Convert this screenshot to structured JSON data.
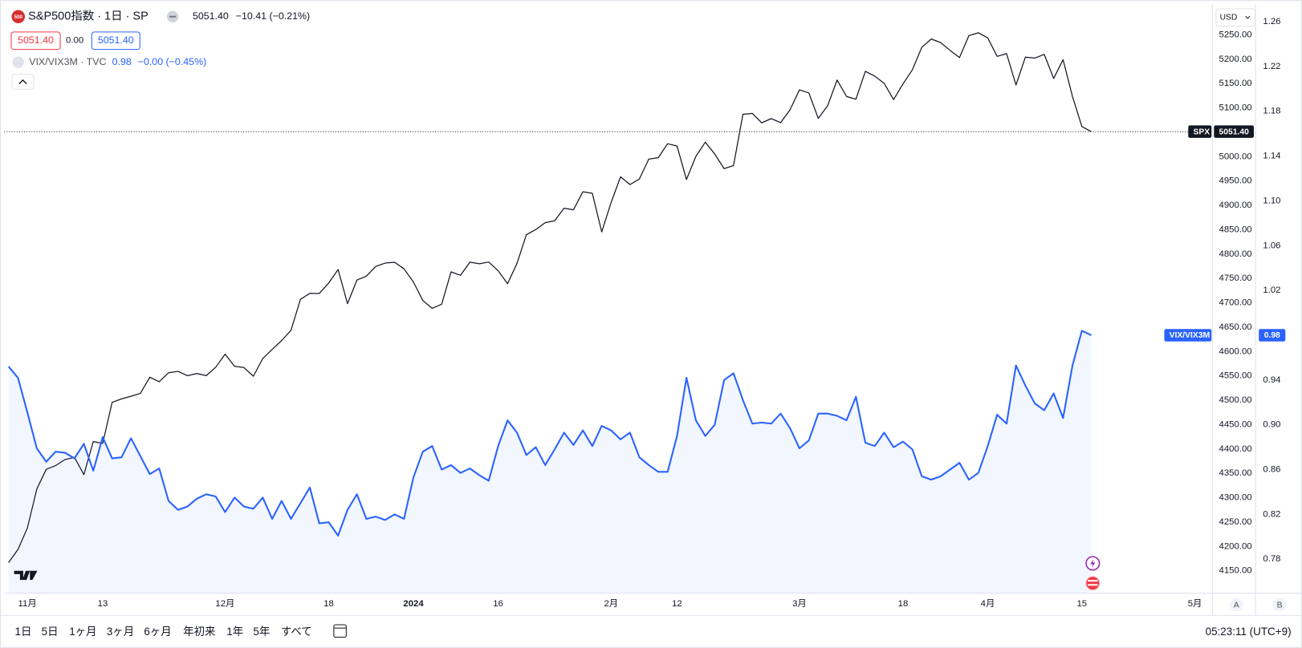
{
  "header": {
    "logo": "500",
    "symbol": "S&P500指数 · 1日 · SP",
    "quote": "5051.40",
    "change": "−10.41 (−0.21%)",
    "sell": "5051.40",
    "spread": "0.00",
    "buy": "5051.40",
    "compare": "VIX/VIX3M · TVC",
    "compare_quote": "0.98",
    "compare_change": "−0.00 (−0.45%)",
    "currency": "USD"
  },
  "chart_data": {
    "type": "line",
    "categories": [
      null,
      null,
      "11月",
      null,
      null,
      null,
      null,
      null,
      null,
      null,
      "13",
      null,
      null,
      null,
      null,
      null,
      null,
      null,
      null,
      null,
      null,
      null,
      null,
      "12月",
      null,
      null,
      null,
      null,
      null,
      null,
      null,
      null,
      null,
      null,
      "18",
      null,
      null,
      null,
      null,
      null,
      null,
      null,
      null,
      "2024",
      null,
      null,
      null,
      null,
      null,
      null,
      null,
      null,
      "16",
      null,
      null,
      null,
      null,
      null,
      null,
      null,
      null,
      null,
      null,
      null,
      "2月",
      null,
      null,
      null,
      null,
      null,
      null,
      "12",
      null,
      null,
      null,
      null,
      null,
      null,
      null,
      null,
      null,
      null,
      null,
      null,
      "3月",
      null,
      null,
      null,
      null,
      null,
      null,
      null,
      null,
      null,
      null,
      "18",
      null,
      null,
      null,
      null,
      null,
      null,
      null,
      null,
      "4月",
      null,
      null,
      null,
      null,
      null,
      null,
      null,
      null,
      null,
      "15",
      null,
      null,
      null,
      null,
      null,
      null,
      null,
      null,
      null,
      null,
      null,
      "5月"
    ],
    "series": [
      {
        "name": "SPX",
        "color": "#131722",
        "axis": "y",
        "values": [
          4166.82,
          4193.8,
          4237.86,
          4317.78,
          4358.34,
          4365.98,
          4378.38,
          4382.78,
          4347.35,
          4415.24,
          4411.55,
          4495.7,
          4502.88,
          4508.24,
          4514.02,
          4547.38,
          4538.19,
          4556.62,
          4559.34,
          4550.43,
          4554.89,
          4550.58,
          4567.8,
          4594.63,
          4569.78,
          4567.18,
          4549.34,
          4585.59,
          4604.37,
          4622.44,
          4643.7,
          4707.09,
          4719.55,
          4719.19,
          4740.56,
          4768.37,
          4698.35,
          4746.75,
          4754.63,
          4774.75,
          4781.58,
          4783.35,
          4769.83,
          4742.83,
          4704.81,
          4688.68,
          4697.24,
          4763.54,
          4756.5,
          4783.45,
          4780.24,
          4783.83,
          4765.98,
          4739.21,
          4780.94,
          4839.81,
          4850.43,
          4864.6,
          4868.55,
          4894.16,
          4890.97,
          4927.93,
          4924.97,
          4845.65,
          4906.19,
          4958.61,
          4942.81,
          4954.23,
          4995.06,
          4997.91,
          5026.61,
          5021.84,
          4953.17,
          5000.62,
          5029.73,
          5005.57,
          4975.51,
          4981.8,
          5087.03,
          5088.8,
          5069.53,
          5078.18,
          5069.76,
          5096.27,
          5137.08,
          5130.95,
          5078.65,
          5104.76,
          5157.36,
          5123.69,
          5117.94,
          5175.27,
          5165.31,
          5150.48,
          5117.09,
          5149.42,
          5178.51,
          5224.62,
          5241.53,
          5234.18,
          5218.19,
          5203.58,
          5248.49,
          5254.35,
          5243.77,
          5205.81,
          5211.49,
          5147.21,
          5204.34,
          5202.39,
          5209.91,
          5160.64,
          5199.06,
          5123.41,
          5061.82,
          5051.4,
          null,
          null,
          null,
          null,
          null,
          null,
          null,
          null,
          null,
          null,
          null
        ],
        "value_labels": [
          null,
          null,
          null,
          null,
          null,
          null,
          null,
          null,
          null,
          null,
          null,
          null,
          null,
          null,
          null,
          null,
          null,
          null,
          null,
          null,
          null,
          null,
          null,
          null,
          null,
          null,
          null,
          null,
          null,
          null,
          null,
          null,
          null,
          null,
          null,
          null,
          null,
          null,
          null,
          null,
          null,
          null,
          null,
          null,
          null,
          null,
          null,
          null,
          null,
          null,
          null,
          null,
          null,
          null,
          null,
          null,
          null,
          null,
          null,
          null,
          null,
          null,
          null,
          null,
          null,
          null,
          null,
          null,
          null,
          null,
          null,
          null,
          null,
          null,
          null,
          null,
          null,
          null,
          null,
          null,
          null,
          null,
          null,
          null,
          null,
          null,
          null,
          null,
          null,
          null,
          null,
          null,
          null,
          null,
          null,
          null,
          null,
          null,
          null,
          null,
          null,
          null,
          null,
          null,
          null,
          null,
          null,
          null,
          null,
          null,
          null,
          null,
          null,
          null,
          null,
          "5051.40",
          null,
          null,
          null,
          null,
          null,
          null,
          null,
          null,
          null,
          null,
          null
        ]
      },
      {
        "name": "VIX/VIX3M",
        "color": "#2962ff",
        "axis": "y2",
        "area": true,
        "values": [
          0.952,
          0.942,
          0.911,
          0.879,
          0.867,
          0.876,
          0.875,
          0.87,
          0.883,
          0.859,
          0.889,
          0.87,
          0.871,
          0.888,
          0.872,
          0.856,
          0.861,
          0.832,
          0.824,
          0.827,
          0.834,
          0.838,
          0.836,
          0.822,
          0.835,
          0.827,
          0.825,
          0.835,
          0.816,
          0.832,
          0.816,
          0.83,
          0.844,
          0.812,
          0.813,
          0.801,
          0.824,
          0.838,
          0.816,
          0.818,
          0.815,
          0.82,
          0.816,
          0.853,
          0.876,
          0.881,
          0.86,
          0.864,
          0.857,
          0.861,
          0.855,
          0.85,
          0.881,
          0.904,
          0.893,
          0.873,
          0.88,
          0.864,
          0.878,
          0.893,
          0.882,
          0.895,
          0.881,
          0.899,
          0.895,
          0.887,
          0.893,
          0.871,
          0.864,
          0.858,
          0.858,
          0.89,
          0.942,
          0.904,
          0.89,
          0.9,
          0.94,
          0.946,
          0.922,
          0.901,
          0.902,
          0.901,
          0.91,
          0.897,
          0.879,
          0.886,
          0.91,
          0.91,
          0.908,
          0.904,
          0.925,
          0.884,
          0.881,
          0.893,
          0.88,
          0.885,
          0.878,
          0.854,
          0.851,
          0.854,
          0.86,
          0.866,
          0.851,
          0.857,
          0.881,
          0.909,
          0.901,
          0.953,
          0.935,
          0.919,
          0.913,
          0.928,
          0.906,
          0.953,
          0.984,
          0.98,
          null,
          null,
          null,
          null,
          null,
          null,
          null,
          null,
          null,
          null,
          null
        ]
      }
    ],
    "ylim": [
      4104,
      5313
    ],
    "yticks": [
      {
        "value": 4150,
        "label": "4150.00"
      },
      {
        "value": 4200,
        "label": "4200.00"
      },
      {
        "value": 4250,
        "label": "4250.00"
      },
      {
        "value": 4300,
        "label": "4300.00"
      },
      {
        "value": 4350,
        "label": "4350.00"
      },
      {
        "value": 4400,
        "label": "4400.00"
      },
      {
        "value": 4450,
        "label": "4450.00"
      },
      {
        "value": 4500,
        "label": "4500.00"
      },
      {
        "value": 4550,
        "label": "4550.00"
      },
      {
        "value": 4600,
        "label": "4600.00"
      },
      {
        "value": 4650,
        "label": "4650.00"
      },
      {
        "value": 4700,
        "label": "4700.00"
      },
      {
        "value": 4750,
        "label": "4750.00"
      },
      {
        "value": 4800,
        "label": "4800.00"
      },
      {
        "value": 4850,
        "label": "4850.00"
      },
      {
        "value": 4900,
        "label": "4900.00"
      },
      {
        "value": 4950,
        "label": "4950.00"
      },
      {
        "value": 5000,
        "label": "5000.00"
      },
      {
        "value": 5100,
        "label": "5100.00"
      },
      {
        "value": 5150,
        "label": "5150.00"
      },
      {
        "value": 5200,
        "label": "5200.00"
      },
      {
        "value": 5250,
        "label": "5250.00"
      }
    ],
    "y2lim": [
      0.7496,
      1.2756
    ],
    "y2ticks": [
      0.78,
      0.82,
      0.86,
      {
        "value": 0.9,
        "label": "0.90"
      },
      0.94,
      1.02,
      1.06,
      {
        "value": 1.1,
        "label": "1.10"
      },
      1.14,
      1.18,
      1.22,
      1.26
    ],
    "grid": false
  },
  "toolbar": {
    "ranges": [
      "1日",
      "5日",
      "1ヶ月",
      "3ヶ月",
      "6ヶ月",
      "年初来",
      "1年",
      "5年",
      "すべて"
    ],
    "clock": "05:23:11 (UTC+9)",
    "scale_buttons": [
      "A",
      "B"
    ]
  }
}
